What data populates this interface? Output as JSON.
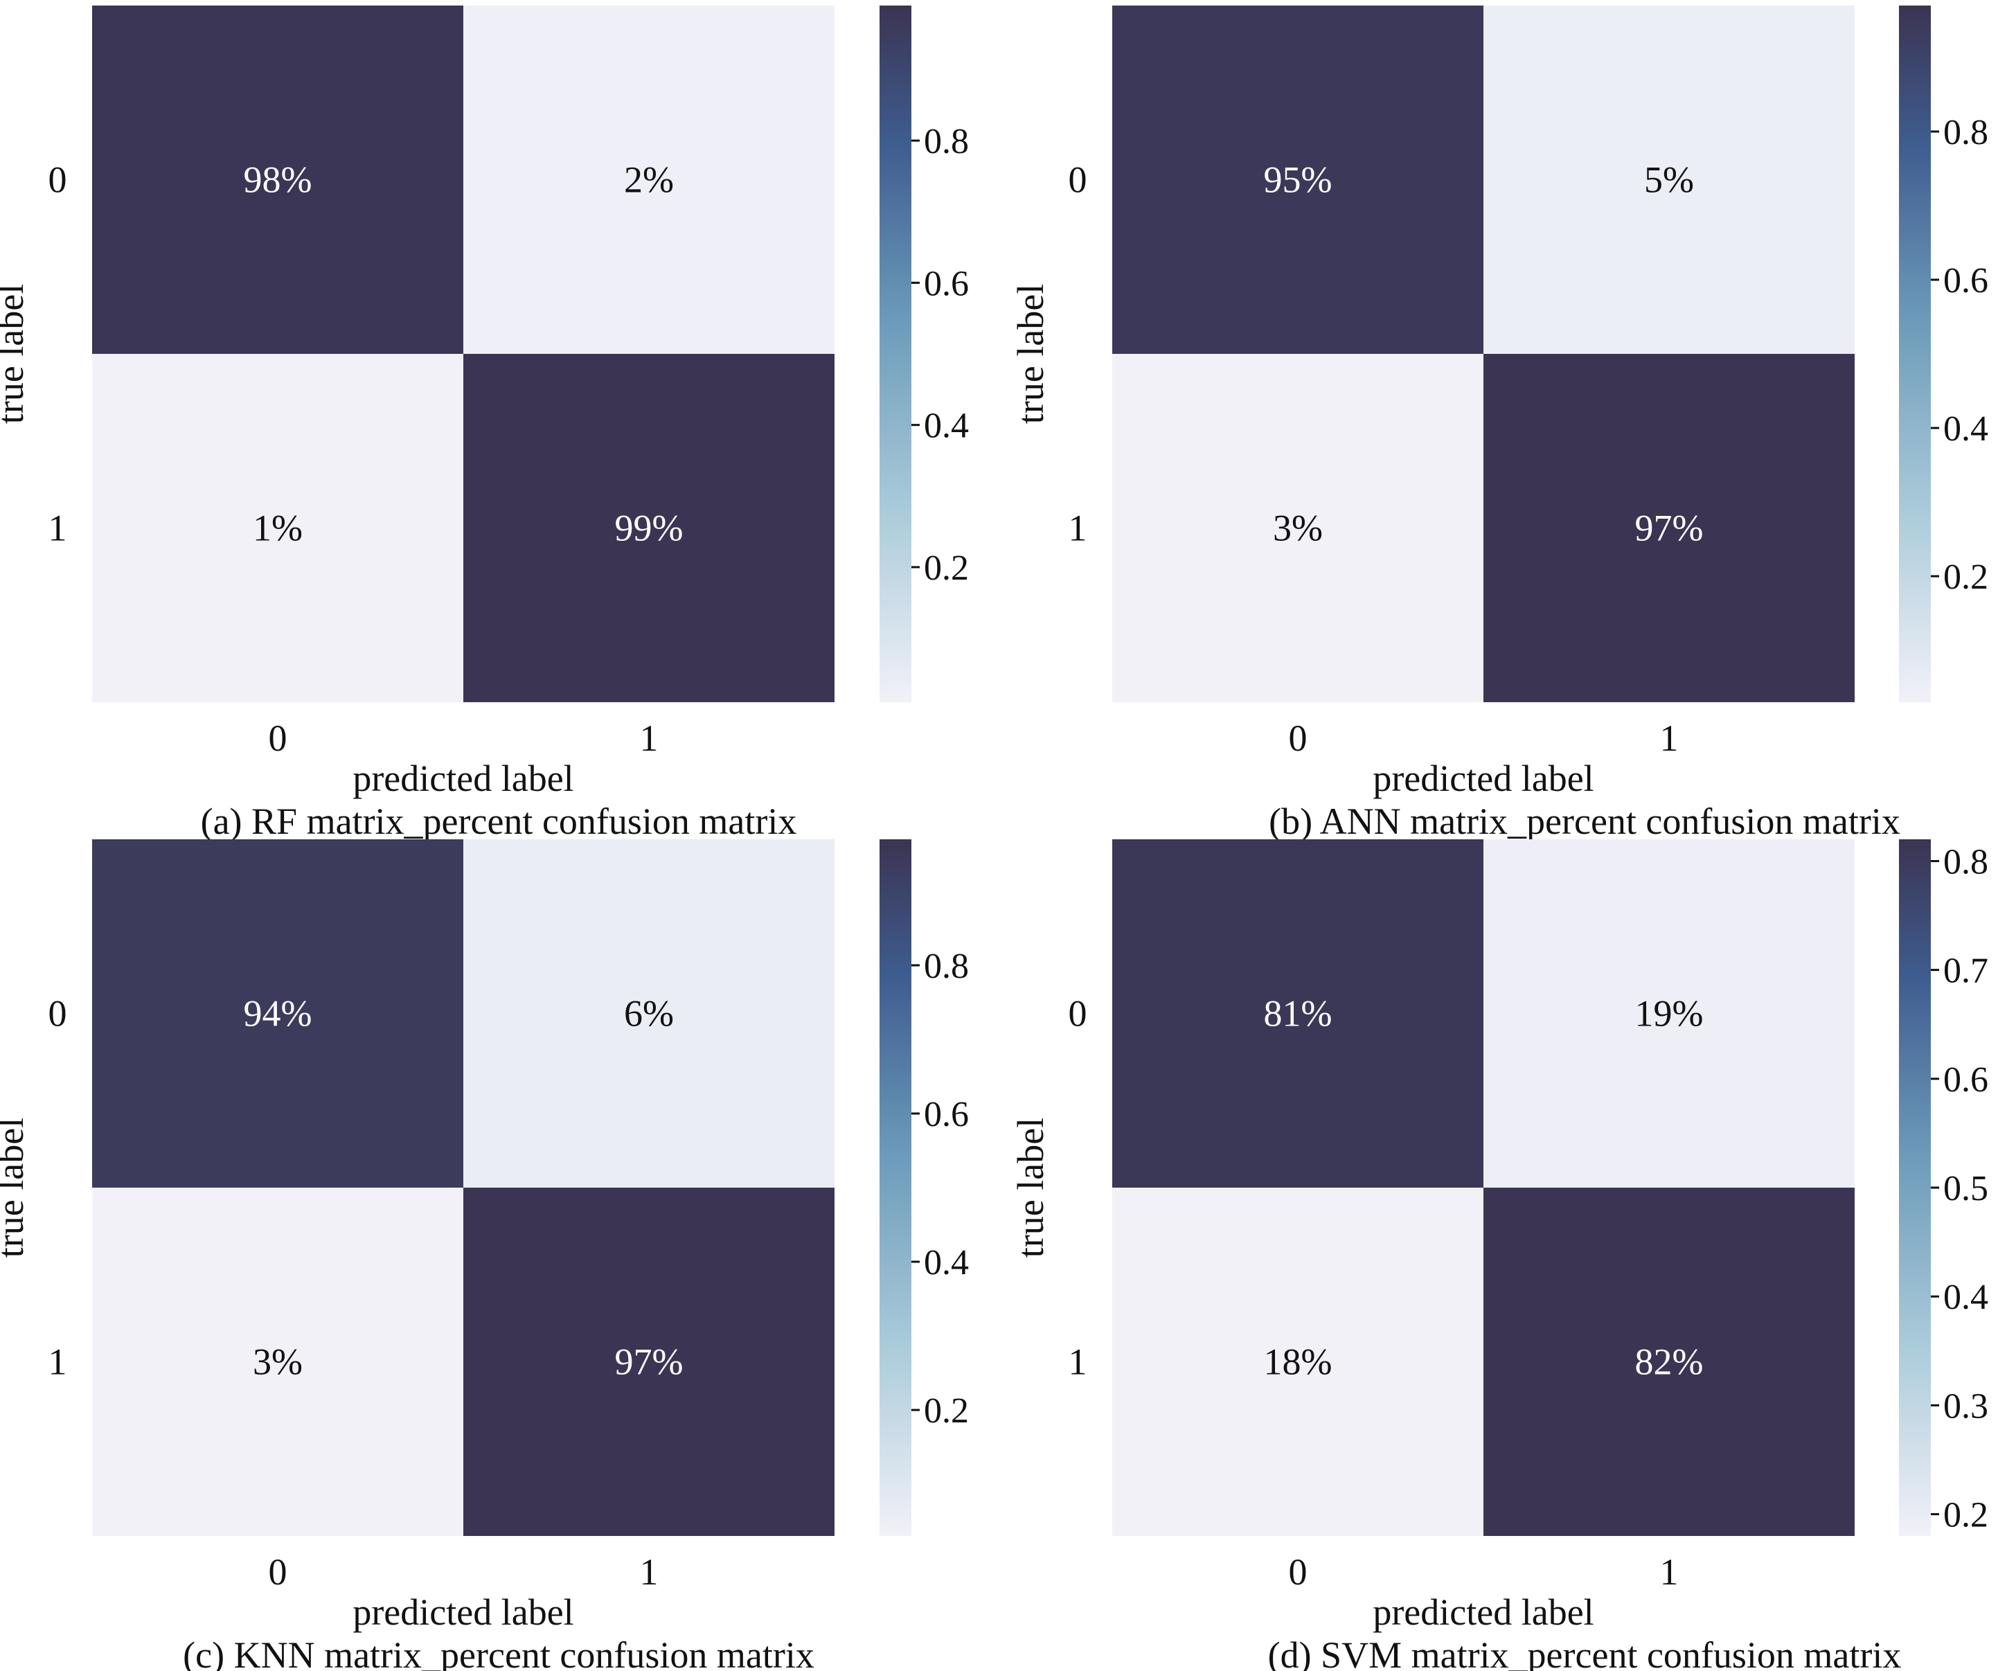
{
  "chart_data": [
    {
      "type": "heatmap",
      "caption": "(a) RF matrix_percent confusion matrix",
      "xlabel": "predicted label",
      "ylabel": "true label",
      "x_tick_labels": [
        "0",
        "1"
      ],
      "y_tick_labels": [
        "0",
        "1"
      ],
      "values": [
        [
          0.98,
          0.02
        ],
        [
          0.01,
          0.99
        ]
      ],
      "annotations": [
        [
          "98%",
          "2%"
        ],
        [
          "1%",
          "99%"
        ]
      ],
      "colorbar": {
        "range": [
          0.01,
          0.99
        ],
        "ticks": [
          0.2,
          0.4,
          0.6,
          0.8
        ],
        "tick_labels": [
          "0.2",
          "0.4",
          "0.6",
          "0.8"
        ]
      }
    },
    {
      "type": "heatmap",
      "caption": "(b) ANN matrix_percent confusion matrix",
      "xlabel": "predicted label",
      "ylabel": "true label",
      "x_tick_labels": [
        "0",
        "1"
      ],
      "y_tick_labels": [
        "0",
        "1"
      ],
      "values": [
        [
          0.95,
          0.05
        ],
        [
          0.03,
          0.97
        ]
      ],
      "annotations": [
        [
          "95%",
          "5%"
        ],
        [
          "3%",
          "97%"
        ]
      ],
      "colorbar": {
        "range": [
          0.03,
          0.97
        ],
        "ticks": [
          0.2,
          0.4,
          0.6,
          0.8
        ],
        "tick_labels": [
          "0.2",
          "0.4",
          "0.6",
          "0.8"
        ]
      }
    },
    {
      "type": "heatmap",
      "caption": "(c) KNN matrix_percent confusion matrix",
      "xlabel": "predicted label",
      "ylabel": "true label",
      "x_tick_labels": [
        "0",
        "1"
      ],
      "y_tick_labels": [
        "0",
        "1"
      ],
      "values": [
        [
          0.94,
          0.06
        ],
        [
          0.03,
          0.97
        ]
      ],
      "annotations": [
        [
          "94%",
          "6%"
        ],
        [
          "3%",
          "97%"
        ]
      ],
      "colorbar": {
        "range": [
          0.03,
          0.97
        ],
        "ticks": [
          0.2,
          0.4,
          0.6,
          0.8
        ],
        "tick_labels": [
          "0.2",
          "0.4",
          "0.6",
          "0.8"
        ]
      }
    },
    {
      "type": "heatmap",
      "caption": "(d) SVM matrix_percent confusion matrix",
      "xlabel": "predicted label",
      "ylabel": "true label",
      "x_tick_labels": [
        "0",
        "1"
      ],
      "y_tick_labels": [
        "0",
        "1"
      ],
      "values": [
        [
          0.81,
          0.19
        ],
        [
          0.18,
          0.82
        ]
      ],
      "annotations": [
        [
          "81%",
          "19%"
        ],
        [
          "18%",
          "82%"
        ]
      ],
      "colorbar": {
        "range": [
          0.18,
          0.82
        ],
        "ticks": [
          0.2,
          0.3,
          0.4,
          0.5,
          0.6,
          0.7,
          0.8
        ],
        "tick_labels": [
          "0.2",
          "0.3",
          "0.4",
          "0.5",
          "0.6",
          "0.7",
          "0.8"
        ]
      }
    }
  ],
  "colors": {
    "low": "#f2f1f8",
    "mid_light": "#a9cad9",
    "mid": "#6c9ab9",
    "mid_dark": "#3f5d90",
    "high": "#3b3452",
    "text_on_dark": "#ffffff",
    "text_on_light": "#111111"
  }
}
